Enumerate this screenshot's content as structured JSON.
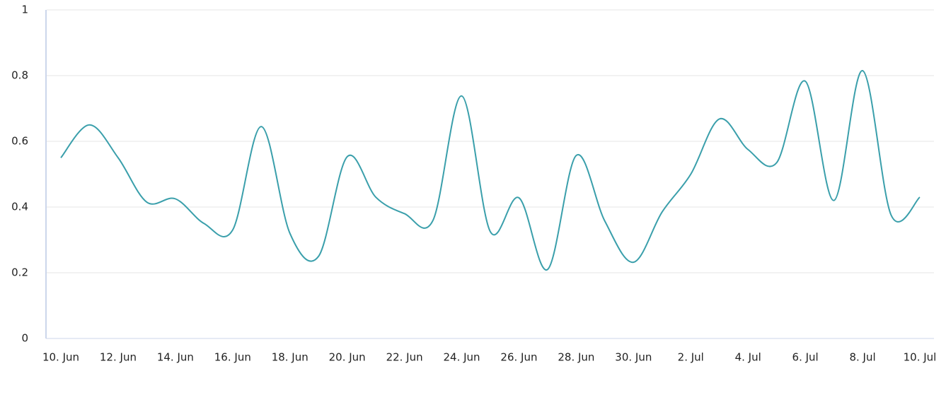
{
  "chart_data": {
    "type": "line",
    "categories": [
      "10. Jun",
      null,
      "12. Jun",
      null,
      "14. Jun",
      null,
      "16. Jun",
      null,
      "18. Jun",
      null,
      "20. Jun",
      null,
      "22. Jun",
      null,
      "24. Jun",
      null,
      "26. Jun",
      null,
      "28. Jun",
      null,
      "30. Jun",
      null,
      "2. Jul",
      null,
      "4. Jul",
      null,
      "6. Jul",
      null,
      "8. Jul",
      null,
      "10. Jul"
    ],
    "values": [
      0.55,
      0.65,
      0.55,
      0.415,
      0.425,
      0.35,
      0.33,
      0.645,
      0.32,
      0.25,
      0.553,
      0.43,
      0.38,
      0.36,
      0.738,
      0.325,
      0.428,
      0.21,
      0.557,
      0.357,
      0.232,
      0.385,
      0.5,
      0.668,
      0.575,
      0.535,
      0.783,
      0.42,
      0.815,
      0.375,
      0.43
    ],
    "color": "#3a9fab",
    "ylim": [
      0,
      1
    ],
    "yticks": [
      0,
      0.2,
      0.4,
      0.6,
      0.8,
      1
    ],
    "grid": true
  }
}
